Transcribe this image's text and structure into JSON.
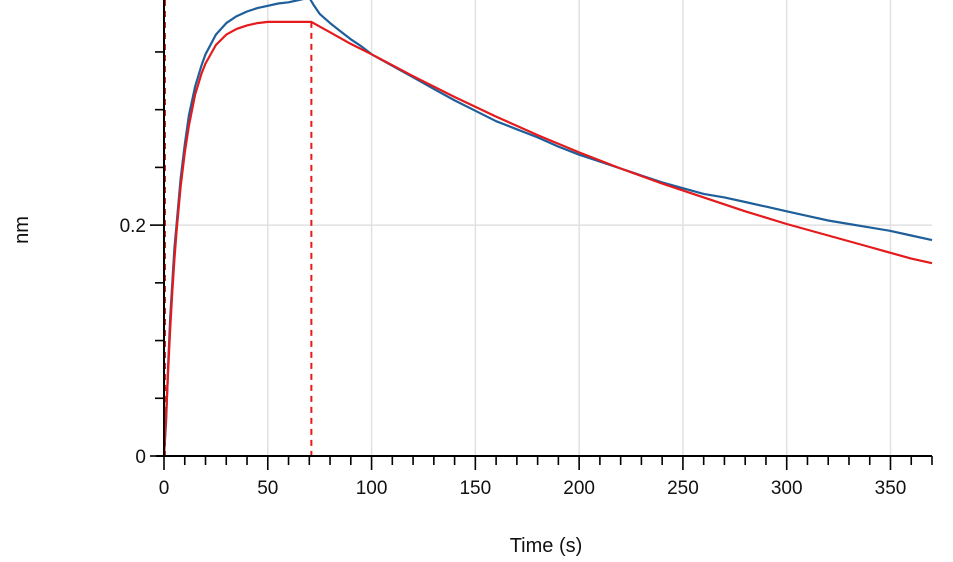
{
  "chart_data": {
    "type": "line",
    "title": "",
    "xlabel": "Time (s)",
    "ylabel": "nm",
    "xlim": [
      0,
      370
    ],
    "ylim": [
      0,
      0.395
    ],
    "x_ticks": [
      0,
      50,
      100,
      150,
      200,
      250,
      300,
      350
    ],
    "x_tick_labels": [
      "0",
      "50",
      "100",
      "150",
      "200",
      "250",
      "300",
      "350"
    ],
    "y_ticks": [
      0,
      0.2
    ],
    "y_tick_labels": [
      "0",
      "0.2"
    ],
    "y_minor_step": 0.05,
    "x_minor_step": 10,
    "grid": true,
    "association_end": 71,
    "colors": {
      "measured": "#1f5f99",
      "fit": "#e41a1c",
      "grid": "#e1e1e1",
      "axis": "#000000"
    },
    "series": [
      {
        "color": "#1f5f99",
        "x": [
          0,
          1,
          2,
          3,
          4,
          5,
          6,
          8,
          10,
          12,
          15,
          18,
          20,
          25,
          30,
          35,
          40,
          45,
          50,
          55,
          60,
          65,
          70,
          72,
          75,
          80,
          85,
          90,
          95,
          100,
          110,
          120,
          130,
          140,
          150,
          160,
          170,
          180,
          190,
          200,
          210,
          220,
          230,
          240,
          250,
          260,
          270,
          280,
          290,
          300,
          310,
          320,
          330,
          340,
          350,
          360,
          370
        ],
        "y": [
          0,
          0.03,
          0.08,
          0.12,
          0.15,
          0.18,
          0.2,
          0.24,
          0.27,
          0.295,
          0.32,
          0.338,
          0.348,
          0.365,
          0.375,
          0.381,
          0.385,
          0.388,
          0.39,
          0.392,
          0.393,
          0.395,
          0.397,
          0.391,
          0.383,
          0.375,
          0.368,
          0.361,
          0.355,
          0.348,
          0.338,
          0.328,
          0.318,
          0.308,
          0.299,
          0.29,
          0.283,
          0.276,
          0.268,
          0.261,
          0.255,
          0.249,
          0.243,
          0.237,
          0.232,
          0.227,
          0.224,
          0.22,
          0.216,
          0.212,
          0.208,
          0.204,
          0.201,
          0.198,
          0.195,
          0.191,
          0.187
        ]
      },
      {
        "color": "#e41a1c",
        "x": [
          0,
          1,
          2,
          3,
          4,
          5,
          6,
          8,
          10,
          12,
          15,
          18,
          20,
          25,
          30,
          35,
          40,
          45,
          50,
          55,
          60,
          65,
          71,
          75,
          80,
          90,
          100,
          120,
          140,
          160,
          180,
          200,
          220,
          240,
          260,
          280,
          300,
          320,
          340,
          360,
          370
        ],
        "y": [
          0,
          0.035,
          0.075,
          0.11,
          0.142,
          0.17,
          0.194,
          0.233,
          0.263,
          0.286,
          0.313,
          0.331,
          0.34,
          0.356,
          0.365,
          0.37,
          0.373,
          0.375,
          0.376,
          0.376,
          0.376,
          0.376,
          0.376,
          0.372,
          0.367,
          0.357,
          0.348,
          0.329,
          0.311,
          0.294,
          0.278,
          0.263,
          0.249,
          0.236,
          0.224,
          0.212,
          0.201,
          0.191,
          0.181,
          0.171,
          0.167
        ]
      }
    ]
  }
}
